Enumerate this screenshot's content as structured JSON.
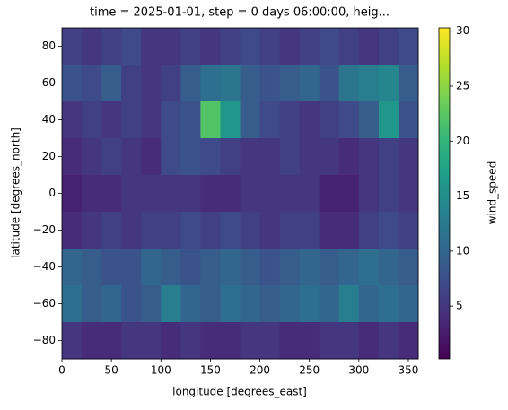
{
  "chart_data": {
    "type": "heatmap",
    "title": "time = 2025-01-01, step = 0 days 06:00:00, heig...",
    "x_label": "longitude [degrees_east]",
    "y_label": "latitude [degrees_north]",
    "colorbar_label": "wind_speed",
    "colormap": [
      "#440154",
      "#482878",
      "#3e4989",
      "#31688e",
      "#26828e",
      "#1f9e89",
      "#35b779",
      "#6ece58",
      "#b5de2b",
      "#fde725"
    ],
    "x": [
      10,
      30,
      50,
      70,
      90,
      110,
      130,
      150,
      170,
      190,
      210,
      230,
      250,
      270,
      290,
      310,
      330,
      350
    ],
    "y": [
      80,
      60,
      40,
      20,
      0,
      -20,
      -40,
      -60,
      -80
    ],
    "z": [
      [
        6,
        5,
        6,
        7,
        5,
        5,
        6,
        5,
        6,
        7,
        6,
        5,
        6,
        7,
        6,
        5,
        6,
        7
      ],
      [
        8,
        7,
        9,
        6,
        5,
        6,
        9,
        11,
        12,
        9,
        8,
        9,
        10,
        8,
        12,
        13,
        14,
        9
      ],
      [
        5,
        6,
        5,
        6,
        5,
        7,
        8,
        22,
        16,
        9,
        7,
        6,
        5,
        6,
        7,
        9,
        16,
        8
      ],
      [
        4,
        5,
        6,
        5,
        4,
        7,
        8,
        7,
        6,
        5,
        5,
        6,
        5,
        5,
        4,
        5,
        6,
        5
      ],
      [
        3,
        4,
        4,
        5,
        5,
        5,
        5,
        4,
        4,
        5,
        5,
        5,
        5,
        3,
        3,
        5,
        6,
        5
      ],
      [
        4,
        5,
        6,
        5,
        6,
        6,
        7,
        6,
        7,
        6,
        5,
        6,
        6,
        4,
        4,
        6,
        7,
        6
      ],
      [
        10,
        9,
        8,
        8,
        10,
        9,
        8,
        9,
        10,
        9,
        8,
        9,
        10,
        9,
        10,
        11,
        10,
        9
      ],
      [
        11,
        9,
        10,
        8,
        9,
        13,
        10,
        9,
        11,
        10,
        9,
        10,
        11,
        10,
        13,
        10,
        11,
        10
      ],
      [
        5,
        4,
        4,
        5,
        5,
        4,
        5,
        4,
        4,
        5,
        5,
        4,
        4,
        5,
        5,
        4,
        5,
        4
      ]
    ],
    "xlim": [
      0,
      360
    ],
    "ylim": [
      -90,
      90
    ],
    "zlim": [
      0.2,
      30.3
    ],
    "xticks": [
      0,
      50,
      100,
      150,
      200,
      250,
      300,
      350
    ],
    "yticks": [
      {
        "value": -80,
        "label": "−80"
      },
      {
        "value": -60,
        "label": "−60"
      },
      {
        "value": -40,
        "label": "−40"
      },
      {
        "value": -20,
        "label": "−20"
      },
      0,
      20,
      40,
      60,
      80
    ],
    "zticks": [
      5,
      10,
      15,
      20,
      25,
      30
    ]
  }
}
